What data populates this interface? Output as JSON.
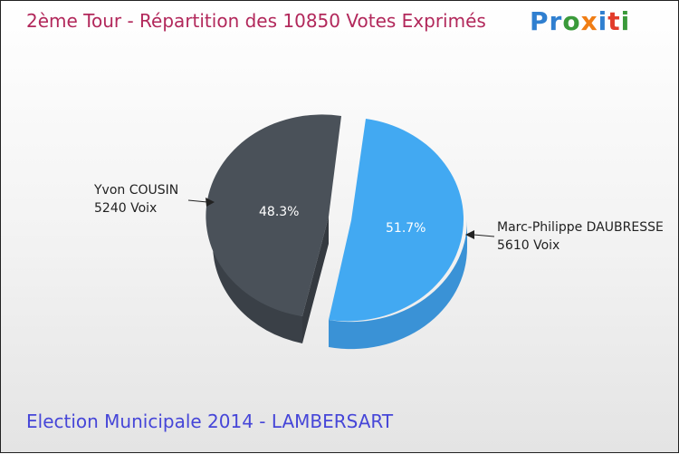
{
  "title": "2ème Tour - Répartition des 10850 Votes Exprimés",
  "subtitle": "Election Municipale 2014 - LAMBERSART",
  "logo": "Proxiti",
  "colors": {
    "dark": "#4a5159",
    "blue": "#42a9f2"
  },
  "chart_data": {
    "type": "pie",
    "title": "2ème Tour - Répartition des 10850 Votes Exprimés",
    "slices": [
      {
        "name": "Yvon COUSIN",
        "votes_label": "5240 Voix",
        "votes": 5240,
        "percent": 48.3,
        "percent_label": "48.3%",
        "color": "#4a5159"
      },
      {
        "name": "Marc-Philippe DAUBRESSE",
        "votes_label": "5610 Voix",
        "votes": 5610,
        "percent": 51.7,
        "percent_label": "51.7%",
        "color": "#42a9f2"
      }
    ]
  }
}
